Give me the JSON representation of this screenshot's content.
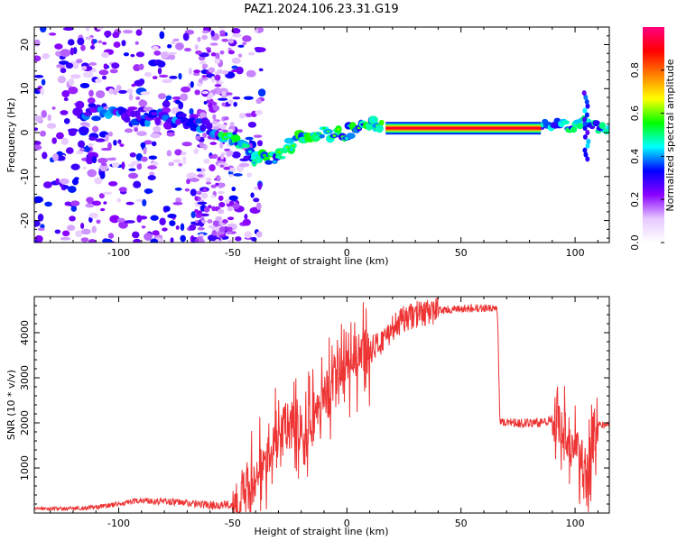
{
  "title": "PAZ1.2024.106.23.31.G19",
  "chart_data": [
    {
      "type": "heatmap",
      "xlabel": "Height of straight line (km)",
      "ylabel": "Frequency (Hz)",
      "xlim": [
        -137,
        115
      ],
      "ylim": [
        -25,
        24
      ],
      "xticks": [
        -100,
        -50,
        0,
        50,
        100
      ],
      "yticks": [
        -20,
        -10,
        0,
        10,
        20
      ],
      "colorbar": {
        "label": "Normalized spectral amplitude",
        "range": [
          0,
          1
        ],
        "ticks": [
          "0.0",
          "0.2",
          "0.4",
          "0.6",
          "0.8"
        ],
        "colors": [
          "#ffffff",
          "#e6c8ff",
          "#8a00ff",
          "#0000ff",
          "#00ffff",
          "#00ff00",
          "#ffff00",
          "#ff8000",
          "#ff0000",
          "#ff0080"
        ]
      },
      "ridge": {
        "x": [
          -115,
          -105,
          -95,
          -85,
          -75,
          -65,
          -55,
          -50,
          -45,
          -40,
          -35,
          -30,
          -25,
          -20,
          -15,
          -10,
          -5,
          0,
          5,
          10,
          15,
          20,
          40,
          60,
          80,
          90,
          95,
          100,
          105,
          110,
          115
        ],
        "frequency": [
          5,
          4,
          4,
          3,
          3,
          2,
          0,
          -2,
          -4,
          -6,
          -6,
          -5,
          -3,
          -1,
          0,
          0,
          0,
          0,
          1,
          2,
          1,
          1,
          1,
          1,
          1,
          2,
          2,
          1,
          3,
          1,
          1
        ]
      },
      "strong_band": {
        "x": [
          17,
          85
        ],
        "frequency": 1
      }
    },
    {
      "type": "line",
      "xlabel": "Height of straight line (km)",
      "ylabel": "SNR (10 * v/v)",
      "xlim": [
        -137,
        115
      ],
      "ylim": [
        0,
        4800
      ],
      "xticks": [
        -100,
        -50,
        0,
        50,
        100
      ],
      "yticks": [
        1000,
        2000,
        3000,
        4000
      ],
      "color": "#ee3333",
      "x": [
        -137,
        -120,
        -110,
        -100,
        -90,
        -80,
        -70,
        -60,
        -50,
        -45,
        -40,
        -35,
        -30,
        -25,
        -20,
        -15,
        -10,
        -5,
        0,
        5,
        10,
        15,
        20,
        25,
        30,
        40,
        50,
        60,
        66,
        67,
        75,
        85,
        90,
        95,
        100,
        103,
        105,
        108,
        110,
        115
      ],
      "y": [
        100,
        100,
        130,
        200,
        280,
        260,
        220,
        180,
        180,
        450,
        900,
        1400,
        1800,
        1900,
        2000,
        2100,
        2500,
        3000,
        3300,
        3400,
        3600,
        3800,
        4100,
        4300,
        4400,
        4500,
        4520,
        4550,
        4500,
        2050,
        2000,
        2000,
        2100,
        1800,
        1500,
        1200,
        700,
        1800,
        1950,
        1950
      ]
    }
  ]
}
